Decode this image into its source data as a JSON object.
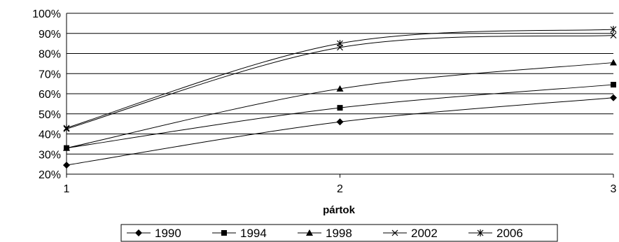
{
  "chart_data": {
    "type": "line",
    "x": [
      1,
      2,
      3
    ],
    "xlabel": "pártok",
    "ylabel": "",
    "ylim": [
      20,
      100
    ],
    "y_tick_step": 10,
    "y_tick_suffix": "%",
    "grid": "horizontal",
    "legend_position": "bottom",
    "series": [
      {
        "name": "1990",
        "values": [
          24.5,
          46,
          58
        ],
        "marker": "diamond"
      },
      {
        "name": "1994",
        "values": [
          33,
          53,
          64.5
        ],
        "marker": "square"
      },
      {
        "name": "1998",
        "values": [
          33,
          62.5,
          75.5
        ],
        "marker": "triangle"
      },
      {
        "name": "2002",
        "values": [
          42.5,
          83,
          89
        ],
        "marker": "x"
      },
      {
        "name": "2006",
        "values": [
          43,
          85,
          92
        ],
        "marker": "star"
      }
    ]
  }
}
